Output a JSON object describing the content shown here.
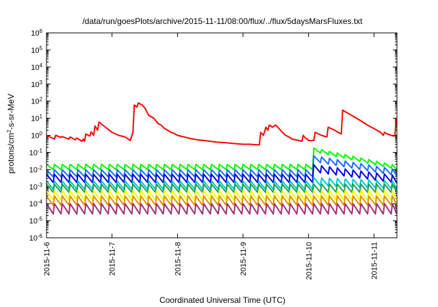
{
  "chart_data": {
    "type": "line",
    "title": "/data/run/goesPlots/archive/2015-11-11/08:00/flux/../flux/5daysMarsFluxes.txt",
    "xlabel": "Coordinated Universal Time (UTC)",
    "ylabel": {
      "base": "protons/cm",
      "sup": "2",
      "rest": "-s-sr-MeV"
    },
    "y_scale": "log",
    "ylim": [
      1e-06,
      1000000.0
    ],
    "y_ticks": [
      {
        "value": 1000000.0,
        "base": "10",
        "exp": "6"
      },
      {
        "value": 100000.0,
        "base": "10",
        "exp": "5"
      },
      {
        "value": 10000.0,
        "base": "10",
        "exp": "4"
      },
      {
        "value": 1000.0,
        "base": "10",
        "exp": "3"
      },
      {
        "value": 100.0,
        "base": "10",
        "exp": "2"
      },
      {
        "value": 10.0,
        "base": "10",
        "exp": "1"
      },
      {
        "value": 1.0,
        "base": "10",
        "exp": "0"
      },
      {
        "value": 0.1,
        "base": "10",
        "exp": "-1"
      },
      {
        "value": 0.01,
        "base": "10",
        "exp": "-2"
      },
      {
        "value": 0.001,
        "base": "10",
        "exp": "-3"
      },
      {
        "value": 0.0001,
        "base": "10",
        "exp": "-4"
      },
      {
        "value": 1e-05,
        "base": "10",
        "exp": "-5"
      },
      {
        "value": 1e-06,
        "base": "10",
        "exp": "-6"
      }
    ],
    "x_range_days": [
      0,
      5.35
    ],
    "x_ticks": [
      {
        "label": "2015-11-6",
        "day": 0
      },
      {
        "label": "2015-11-7",
        "day": 1
      },
      {
        "label": "2015-11-8",
        "day": 2
      },
      {
        "label": "2015-11-9",
        "day": 3
      },
      {
        "label": "2015-11-10",
        "day": 4
      },
      {
        "label": "2015-11-11",
        "day": 5
      }
    ],
    "grid": false,
    "series": [
      {
        "color": "#ff0000",
        "points": [
          [
            0,
            1.0
          ],
          [
            0.12,
            0.6
          ],
          [
            0.14,
            1.0
          ],
          [
            0.22,
            0.75
          ],
          [
            0.24,
            0.85
          ],
          [
            0.34,
            0.6
          ],
          [
            0.36,
            0.8
          ],
          [
            0.44,
            0.55
          ],
          [
            0.46,
            0.7
          ],
          [
            0.54,
            0.45
          ],
          [
            0.56,
            0.6
          ],
          [
            0.58,
            0.45
          ],
          [
            0.6,
            1.2
          ],
          [
            0.66,
            0.9
          ],
          [
            0.68,
            1.6
          ],
          [
            0.72,
            1.0
          ],
          [
            0.74,
            3.5
          ],
          [
            0.78,
            2.0
          ],
          [
            0.8,
            6.0
          ],
          [
            0.9,
            3.0
          ],
          [
            1.0,
            1.5
          ],
          [
            1.1,
            1.0
          ],
          [
            1.2,
            0.8
          ],
          [
            1.28,
            0.5
          ],
          [
            1.32,
            1.5
          ],
          [
            1.34,
            60
          ],
          [
            1.38,
            45
          ],
          [
            1.4,
            80
          ],
          [
            1.46,
            60
          ],
          [
            1.5,
            40
          ],
          [
            1.56,
            15
          ],
          [
            1.64,
            10
          ],
          [
            1.7,
            5
          ],
          [
            1.75,
            4
          ],
          [
            1.8,
            2.5
          ],
          [
            1.85,
            2.0
          ],
          [
            1.9,
            1.5
          ],
          [
            1.95,
            1.3
          ],
          [
            2.0,
            1.0
          ],
          [
            2.1,
            0.8
          ],
          [
            2.2,
            0.65
          ],
          [
            2.3,
            0.55
          ],
          [
            2.4,
            0.5
          ],
          [
            2.5,
            0.45
          ],
          [
            2.6,
            0.4
          ],
          [
            2.7,
            0.38
          ],
          [
            2.8,
            0.35
          ],
          [
            2.9,
            0.32
          ],
          [
            3.0,
            0.3
          ],
          [
            3.1,
            0.3
          ],
          [
            3.2,
            0.28
          ],
          [
            3.25,
            0.28
          ],
          [
            3.27,
            1.5
          ],
          [
            3.31,
            1.0
          ],
          [
            3.35,
            3.0
          ],
          [
            3.38,
            2.0
          ],
          [
            3.4,
            4.0
          ],
          [
            3.45,
            3.0
          ],
          [
            3.5,
            4.0
          ],
          [
            3.55,
            2.5
          ],
          [
            3.6,
            1.5
          ],
          [
            3.65,
            1.0
          ],
          [
            3.7,
            0.8
          ],
          [
            3.75,
            0.6
          ],
          [
            3.8,
            0.55
          ],
          [
            3.85,
            0.5
          ],
          [
            3.9,
            0.45
          ],
          [
            3.92,
            1.0
          ],
          [
            3.95,
            0.7
          ],
          [
            3.98,
            0.6
          ],
          [
            4.0,
            0.5
          ],
          [
            4.05,
            0.5
          ],
          [
            4.08,
            0.5
          ],
          [
            4.1,
            1.5
          ],
          [
            4.2,
            1.0
          ],
          [
            4.28,
            0.8
          ],
          [
            4.3,
            3.0
          ],
          [
            4.4,
            2.0
          ],
          [
            4.45,
            1.5
          ],
          [
            4.5,
            1.2
          ],
          [
            4.52,
            30
          ],
          [
            4.6,
            20
          ],
          [
            4.7,
            12
          ],
          [
            4.8,
            7
          ],
          [
            4.9,
            4
          ],
          [
            5.0,
            2.5
          ],
          [
            5.1,
            1.5
          ],
          [
            5.14,
            1.0
          ],
          [
            5.16,
            1.5
          ],
          [
            5.2,
            1.2
          ],
          [
            5.3,
            0.9
          ],
          [
            5.32,
            1.0
          ],
          [
            5.34,
            10
          ],
          [
            5.35,
            10
          ]
        ]
      },
      {
        "color": "#00ff00",
        "start": 0.014,
        "sawtooth": true,
        "jump_at": 4.0,
        "jump_to": 0.15,
        "end": 0.012,
        "amp": 2.0
      },
      {
        "color": "#1a6cff",
        "start": 0.006,
        "sawtooth": true,
        "jump_at": 4.0,
        "jump_to": 0.045,
        "end": 0.006,
        "amp": 2.6
      },
      {
        "color": "#0000e0",
        "start": 0.003,
        "sawtooth": true,
        "jump_at": 4.0,
        "jump_to": 0.012,
        "end": 0.0025,
        "amp": 3.0
      },
      {
        "color": "#00c8c8",
        "start": 0.0012,
        "sawtooth": true,
        "jump_at": 4.0,
        "jump_to": 0.002,
        "end": 0.0012,
        "amp": 3.0
      },
      {
        "color": "#1fa050",
        "start": 0.0008,
        "sawtooth": true,
        "amp": 3.0
      },
      {
        "color": "#ffff00",
        "start": 0.0003,
        "sawtooth": true,
        "amp": 3.5
      },
      {
        "color": "#e09000",
        "start": 0.00015,
        "sawtooth": true,
        "amp": 3.5
      },
      {
        "color": "#a0307a",
        "start": 5e-05,
        "sawtooth": true,
        "amp": 4.0
      }
    ]
  }
}
